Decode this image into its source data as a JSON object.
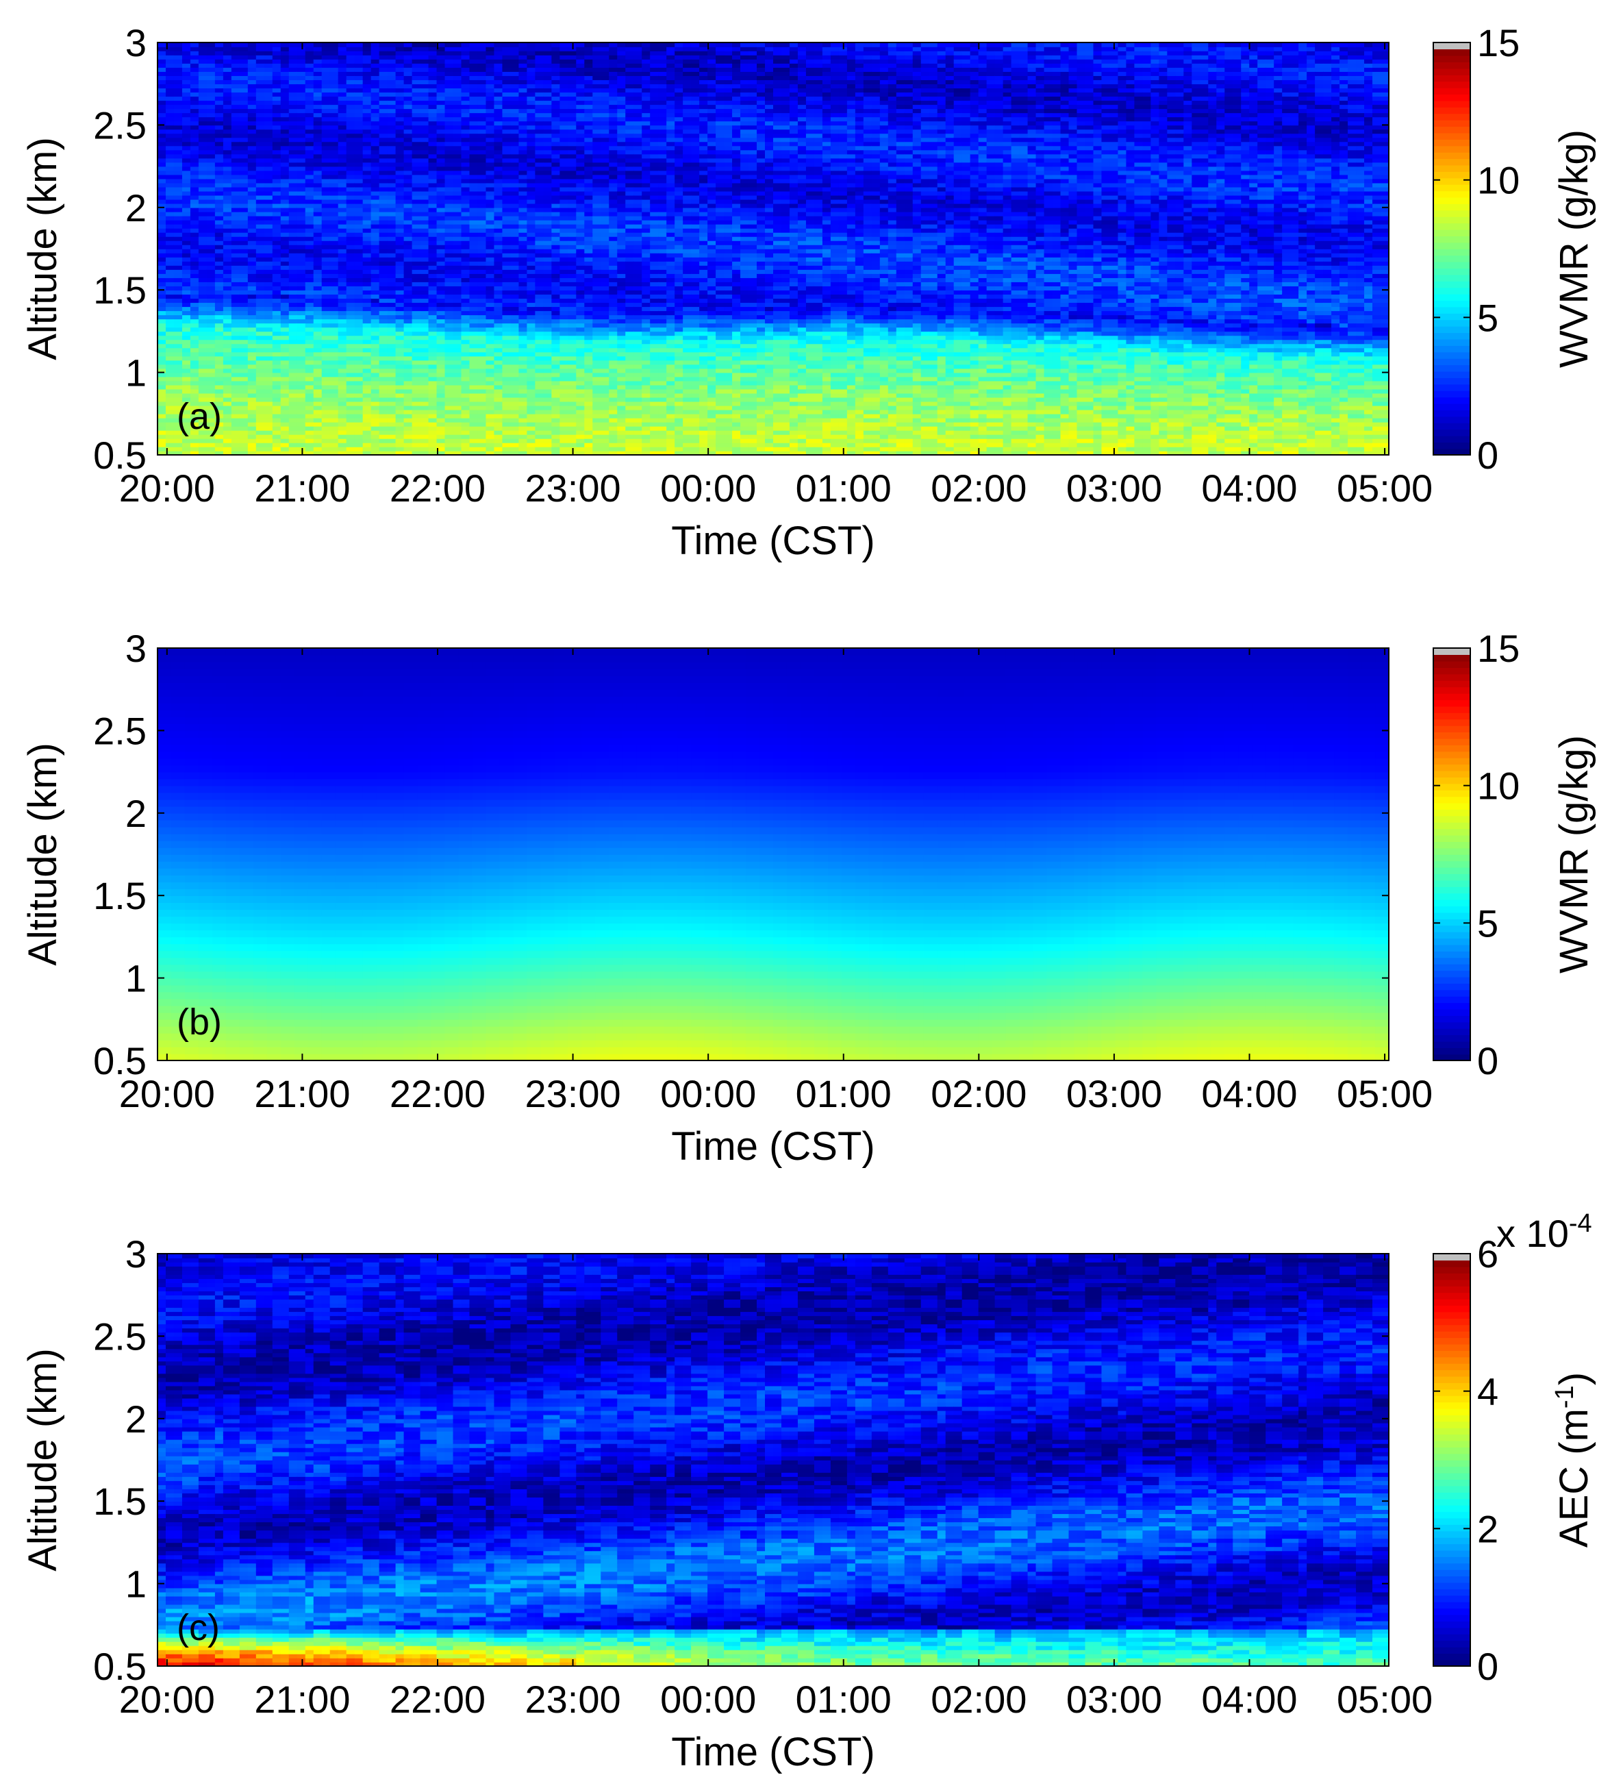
{
  "colormap": "jet",
  "chart_data": [
    {
      "type": "heatmap",
      "panel_label": "(a)",
      "xlabel": "Time (CST)",
      "ylabel": "Altitude (km)",
      "x_ticks": [
        "20:00",
        "21:00",
        "22:00",
        "23:00",
        "00:00",
        "01:00",
        "02:00",
        "03:00",
        "04:00",
        "05:00"
      ],
      "y_ticks": [
        "0.5",
        "1",
        "1.5",
        "2",
        "2.5",
        "3"
      ],
      "ylim": [
        0.5,
        3
      ],
      "x_range_hours": [
        19.93,
        29.03
      ],
      "colorbar": {
        "label": "WVMR (g/kg)",
        "ticks": [
          "0",
          "5",
          "10",
          "15"
        ],
        "range": [
          0,
          15
        ],
        "exponent": ""
      },
      "field": {
        "description_profile": "noisy lidar retrieval; moist layer below ~1.3 km, sharp drop near boundary-layer top",
        "boundary_layer_top_km": [
          [
            20,
            1.4
          ],
          [
            21,
            1.38
          ],
          [
            22,
            1.34
          ],
          [
            23,
            1.3
          ],
          [
            0,
            1.3
          ],
          [
            1,
            1.32
          ],
          [
            2,
            1.3
          ],
          [
            3,
            1.26
          ],
          [
            4,
            1.22
          ],
          [
            5,
            1.2
          ]
        ],
        "surface_value": 8.5,
        "mid_value": 6.0,
        "upper_value": 2.5,
        "top_value": 1.5,
        "noise": 0.9
      }
    },
    {
      "type": "heatmap",
      "panel_label": "(b)",
      "xlabel": "Time (CST)",
      "ylabel": "Altitude (km)",
      "x_ticks": [
        "20:00",
        "21:00",
        "22:00",
        "23:00",
        "00:00",
        "01:00",
        "02:00",
        "03:00",
        "04:00",
        "05:00"
      ],
      "y_ticks": [
        "0.5",
        "1",
        "1.5",
        "2",
        "2.5",
        "3"
      ],
      "ylim": [
        0.5,
        3
      ],
      "x_range_hours": [
        19.93,
        29.03
      ],
      "colorbar": {
        "label": "WVMR (g/kg)",
        "ticks": [
          "0",
          "5",
          "10",
          "15"
        ],
        "range": [
          0,
          15
        ],
        "exponent": ""
      },
      "field": {
        "description_profile": "smooth model field decreasing with altitude",
        "surface_value": 8.8,
        "mid_value": 5.5,
        "upper_value": 2.0,
        "top_value": 1.0,
        "noise": 0.0
      }
    },
    {
      "type": "heatmap",
      "panel_label": "(c)",
      "xlabel": "Time (CST)",
      "ylabel": "Altitude (km)",
      "x_ticks": [
        "20:00",
        "21:00",
        "22:00",
        "23:00",
        "00:00",
        "01:00",
        "02:00",
        "03:00",
        "04:00",
        "05:00"
      ],
      "y_ticks": [
        "0.5",
        "1",
        "1.5",
        "2",
        "2.5",
        "3"
      ],
      "ylim": [
        0.5,
        3
      ],
      "x_range_hours": [
        19.93,
        29.03
      ],
      "colorbar": {
        "label": "AEC (m",
        "label_sup": "-1",
        "label_end": ")",
        "ticks": [
          "0",
          "2",
          "4",
          "6"
        ],
        "range": [
          0,
          6
        ],
        "exponent": "x 10",
        "exponent_sup": "-4"
      },
      "field": {
        "description_profile": "aerosol extinction; strong near-surface layer early in the night, patchy aloft",
        "surface_peak_by_hour": [
          [
            20,
            5.3
          ],
          [
            21,
            5.0
          ],
          [
            22,
            4.3
          ],
          [
            23,
            3.9
          ],
          [
            0,
            3.4
          ],
          [
            1,
            3.0
          ],
          [
            2,
            2.9
          ],
          [
            3,
            2.8
          ],
          [
            4,
            2.7
          ],
          [
            5,
            2.7
          ]
        ],
        "aloft_value": 1.2,
        "noise": 0.5
      }
    }
  ]
}
